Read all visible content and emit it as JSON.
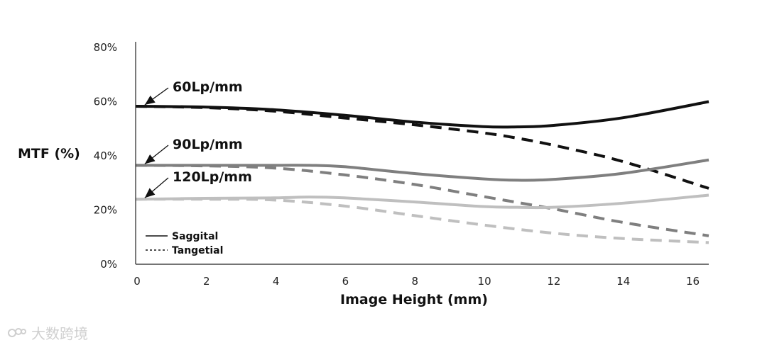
{
  "chart_data": {
    "type": "line",
    "title": "",
    "xlabel": "Image Height (mm)",
    "ylabel": "MTF (%)",
    "xlim": [
      0,
      16.5
    ],
    "ylim": [
      0,
      80
    ],
    "xticks": [
      0,
      2,
      4,
      6,
      8,
      10,
      12,
      14,
      16
    ],
    "yticks": [
      0,
      20,
      40,
      60,
      80
    ],
    "ytick_labels": [
      "0%",
      "20%",
      "40%",
      "60%",
      "80%"
    ],
    "legend": [
      {
        "label": "Saggital",
        "style": "solid"
      },
      {
        "label": "Tangetial",
        "style": "dashed"
      }
    ],
    "series": [
      {
        "name": "60Lp/mm",
        "type": "Saggital",
        "style": "solid",
        "color": "#111111",
        "x": [
          0,
          2,
          4,
          6,
          8,
          10,
          11,
          12,
          14,
          16.5
        ],
        "y": [
          58.3,
          58,
          57,
          55,
          52.5,
          50.8,
          50.7,
          51.2,
          54,
          60
        ]
      },
      {
        "name": "60Lp/mm",
        "type": "Tangetial",
        "style": "dashed",
        "color": "#111111",
        "x": [
          0,
          2,
          4,
          6,
          8,
          10,
          11,
          12,
          14,
          16.5
        ],
        "y": [
          58.3,
          57.8,
          56.5,
          54,
          51.5,
          48.5,
          46.5,
          44,
          38,
          28
        ]
      },
      {
        "name": "90Lp/mm",
        "type": "Saggital",
        "style": "solid",
        "color": "#7f7f7f",
        "x": [
          0,
          2,
          4,
          5,
          6,
          8,
          10,
          11,
          12,
          14,
          16.5
        ],
        "y": [
          36.5,
          36.5,
          36.5,
          36.5,
          36,
          33.5,
          31.5,
          31,
          31.3,
          33.5,
          38.5
        ]
      },
      {
        "name": "90Lp/mm",
        "type": "Tangetial",
        "style": "dashed",
        "color": "#7f7f7f",
        "x": [
          0,
          2,
          4,
          6,
          8,
          10,
          12,
          14,
          16.5
        ],
        "y": [
          36.5,
          36.3,
          35.5,
          33,
          29.5,
          25,
          20.5,
          15.5,
          10.5
        ]
      },
      {
        "name": "120Lp/mm",
        "type": "Saggital",
        "style": "solid",
        "color": "#bfbfbf",
        "x": [
          0,
          2,
          4,
          5,
          6,
          8,
          10,
          11,
          12,
          14,
          16.5
        ],
        "y": [
          24,
          24.3,
          24.5,
          24.8,
          24.5,
          23,
          21.3,
          21,
          21,
          22.5,
          25.5
        ]
      },
      {
        "name": "120Lp/mm",
        "type": "Tangetial",
        "style": "dashed",
        "color": "#bfbfbf",
        "x": [
          0,
          2,
          4,
          6,
          8,
          10,
          12,
          14,
          16.5
        ],
        "y": [
          24,
          24,
          23.7,
          21.5,
          18,
          14.5,
          11.5,
          9.5,
          8
        ]
      }
    ],
    "annotations": [
      {
        "text": "60Lp/mm",
        "arrow_to_x": 0.1,
        "arrow_to_y": 58.3
      },
      {
        "text": "90Lp/mm",
        "arrow_to_x": 0.1,
        "arrow_to_y": 36.5
      },
      {
        "text": "120Lp/mm",
        "arrow_to_x": 0.1,
        "arrow_to_y": 24
      }
    ]
  },
  "watermark": {
    "text": "大数跨境"
  }
}
